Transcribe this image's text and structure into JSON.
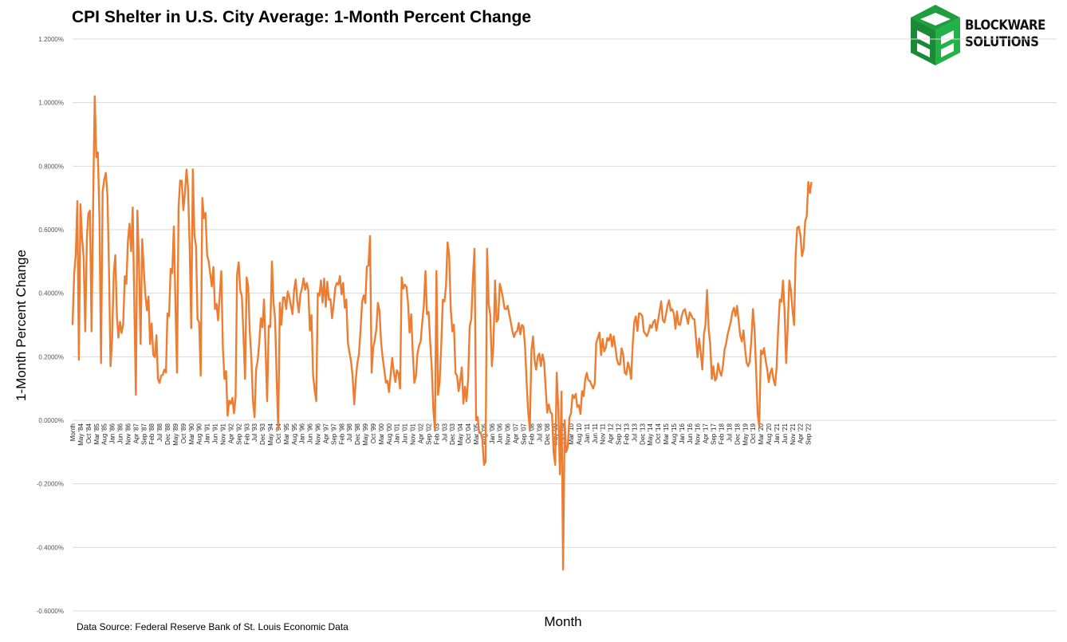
{
  "chart_data": {
    "type": "line",
    "title": "CPI Shelter in U.S. City Average: 1-Month Percent Change",
    "xlabel": "Month",
    "ylabel": "1-Month Percent Change",
    "source": "Data Source: Federal Reserve Bank of St. Louis Economic Data",
    "ylim": [
      -0.6,
      1.2
    ],
    "yticks": [
      "1.2000%",
      "1.0000%",
      "0.8000%",
      "0.6000%",
      "0.4000%",
      "0.2000%",
      "0.0000%",
      "-0.2000%",
      "-0.4000%",
      "-0.6000%"
    ],
    "ytick_values": [
      1.2,
      1.0,
      0.8,
      0.6,
      0.4,
      0.2,
      0.0,
      -0.2,
      -0.4,
      -0.6
    ],
    "grid": true,
    "legend": "none",
    "line_color": "#ED7D31",
    "start": "1984-01",
    "end": "2022-12",
    "x_tick_labels": [
      "Month",
      "May '84",
      "Oct '84",
      "Mar '85",
      "Aug '85",
      "Jan '86",
      "Jun '86",
      "Nov '86",
      "Apr '87",
      "Sep '87",
      "Feb '88",
      "Jul '88",
      "Dec '88",
      "May '89",
      "Oct '89",
      "Mar '90",
      "Aug '90",
      "Jan '91",
      "Jun '91",
      "Nov '91",
      "Apr '92",
      "Sep '92",
      "Feb '93",
      "Jul '93",
      "Dec '93",
      "May '94",
      "Oct '94",
      "Mar '95",
      "Aug '95",
      "Jan '96",
      "Jun '96",
      "Nov '96",
      "Apr '97",
      "Sep '97",
      "Feb '98",
      "Jul '98",
      "Dec '98",
      "May '99",
      "Oct '99",
      "Mar '00",
      "Aug '00",
      "Jan '01",
      "Jun '01",
      "Nov '01",
      "Apr '02",
      "Sep '02",
      "Feb '03",
      "Jul '03",
      "Dec '03",
      "May '04",
      "Oct '04",
      "Mar '05",
      "Aug '05",
      "Jan '06",
      "Jun '06",
      "Nov '06",
      "Apr '07",
      "Sep '07",
      "Feb '08",
      "Jul '08",
      "Dec '08",
      "May '09",
      "Oct '09",
      "Mar '10",
      "Aug '10",
      "Jan '11",
      "Jun '11",
      "Nov '11",
      "Apr '12",
      "Sep '12",
      "Feb '13",
      "Jul '13",
      "Dec '13",
      "May '14",
      "Oct '14",
      "Mar '15",
      "Aug '15",
      "Jan '16",
      "Jun '16",
      "Nov '16",
      "Apr '17",
      "Sep '17",
      "Feb '18",
      "Jul '18",
      "Dec '18",
      "May '19",
      "Oct '19",
      "Mar '20",
      "Aug '20",
      "Jan '21",
      "Jun '21",
      "Nov '21",
      "Apr '22",
      "Sep '22"
    ],
    "anchors": [
      [
        "1984-01",
        0.3
      ],
      [
        "1984-04",
        0.69
      ],
      [
        "1984-05",
        0.19
      ],
      [
        "1984-06",
        0.68
      ],
      [
        "1984-09",
        0.28
      ],
      [
        "1984-10",
        0.57
      ],
      [
        "1984-12",
        0.66
      ],
      [
        "1985-01",
        0.28
      ],
      [
        "1985-03",
        1.02
      ],
      [
        "1985-06",
        0.64
      ],
      [
        "1985-07",
        0.18
      ],
      [
        "1985-08",
        0.72
      ],
      [
        "1985-11",
        0.71
      ],
      [
        "1986-01",
        0.17
      ],
      [
        "1986-04",
        0.52
      ],
      [
        "1986-06",
        0.26
      ],
      [
        "1986-11",
        0.43
      ],
      [
        "1987-03",
        0.67
      ],
      [
        "1987-05",
        0.08
      ],
      [
        "1987-06",
        0.66
      ],
      [
        "1987-08",
        0.24
      ],
      [
        "1987-09",
        0.57
      ],
      [
        "1988-02",
        0.24
      ],
      [
        "1988-12",
        0.15
      ],
      [
        "1989-05",
        0.61
      ],
      [
        "1989-07",
        0.15
      ],
      [
        "1989-08",
        0.67
      ],
      [
        "1990-02",
        0.73
      ],
      [
        "1990-04",
        0.29
      ],
      [
        "1990-05",
        0.79
      ],
      [
        "1990-10",
        0.14
      ],
      [
        "1990-11",
        0.7
      ],
      [
        "1991-07",
        0.35
      ],
      [
        "1991-11",
        0.47
      ],
      [
        "1992-01",
        0.13
      ],
      [
        "1992-08",
        0.07
      ],
      [
        "1992-09",
        0.46
      ],
      [
        "1992-12",
        0.39
      ],
      [
        "1993-02",
        0.13
      ],
      [
        "1993-03",
        0.45
      ],
      [
        "1993-07",
        0.06
      ],
      [
        "1994-02",
        0.38
      ],
      [
        "1994-04",
        0.06
      ],
      [
        "1994-07",
        0.5
      ],
      [
        "1994-11",
        -0.03
      ],
      [
        "1994-12",
        0.37
      ],
      [
        "1995-07",
        0.36
      ],
      [
        "1996-06",
        0.41
      ],
      [
        "1996-11",
        0.06
      ],
      [
        "1996-12",
        0.4
      ],
      [
        "1998-06",
        0.38
      ],
      [
        "1998-11",
        0.05
      ],
      [
        "1999-09",
        0.58
      ],
      [
        "1999-10",
        0.15
      ],
      [
        "2000-02",
        0.37
      ],
      [
        "2000-06",
        0.16
      ],
      [
        "2001-04",
        0.1
      ],
      [
        "2001-05",
        0.45
      ],
      [
        "2001-08",
        0.42
      ],
      [
        "2002-02",
        0.14
      ],
      [
        "2002-08",
        0.47
      ],
      [
        "2003-02",
        -0.03
      ],
      [
        "2003-03",
        0.47
      ],
      [
        "2003-04",
        0.08
      ],
      [
        "2003-10",
        0.56
      ],
      [
        "2004-01",
        0.28
      ],
      [
        "2004-04",
        0.14
      ],
      [
        "2004-10",
        0.06
      ],
      [
        "2005-03",
        0.54
      ],
      [
        "2005-04",
        0.0
      ],
      [
        "2005-10",
        -0.13
      ],
      [
        "2005-11",
        0.54
      ],
      [
        "2006-02",
        0.17
      ],
      [
        "2006-04",
        0.44
      ],
      [
        "2006-05",
        0.31
      ],
      [
        "2006-07",
        0.43
      ],
      [
        "2006-11",
        0.35
      ],
      [
        "2007-03",
        0.28
      ],
      [
        "2007-09",
        0.3
      ],
      [
        "2008-02",
        -0.03
      ],
      [
        "2008-03",
        0.22
      ],
      [
        "2008-08",
        0.21
      ],
      [
        "2008-12",
        0.1
      ],
      [
        "2009-04",
        0.02
      ],
      [
        "2009-06",
        -0.14
      ],
      [
        "2009-07",
        0.15
      ],
      [
        "2009-09",
        -0.17
      ],
      [
        "2009-10",
        0.09
      ],
      [
        "2009-11",
        -0.47
      ],
      [
        "2009-12",
        0.0
      ],
      [
        "2010-01",
        -0.1
      ],
      [
        "2010-06",
        0.07
      ],
      [
        "2010-10",
        0.02
      ],
      [
        "2011-01",
        0.13
      ],
      [
        "2011-06",
        0.1
      ],
      [
        "2011-09",
        0.26
      ],
      [
        "2012-02",
        0.23
      ],
      [
        "2012-08",
        0.23
      ],
      [
        "2013-06",
        0.13
      ],
      [
        "2013-08",
        0.31
      ],
      [
        "2014-06",
        0.3
      ],
      [
        "2015-05",
        0.36
      ],
      [
        "2016-01",
        0.3
      ],
      [
        "2016-04",
        0.35
      ],
      [
        "2016-09",
        0.32
      ],
      [
        "2017-03",
        0.16
      ],
      [
        "2017-06",
        0.41
      ],
      [
        "2017-09",
        0.13
      ],
      [
        "2018-03",
        0.14
      ],
      [
        "2018-07",
        0.27
      ],
      [
        "2018-09",
        0.31
      ],
      [
        "2019-01",
        0.36
      ],
      [
        "2019-08",
        0.17
      ],
      [
        "2019-11",
        0.35
      ],
      [
        "2020-02",
        0.02
      ],
      [
        "2020-03",
        -0.02
      ],
      [
        "2020-04",
        0.22
      ],
      [
        "2020-09",
        0.12
      ],
      [
        "2021-01",
        0.11
      ],
      [
        "2021-02",
        0.17
      ],
      [
        "2021-04",
        0.38
      ],
      [
        "2021-06",
        0.44
      ],
      [
        "2021-08",
        0.18
      ],
      [
        "2021-10",
        0.44
      ],
      [
        "2022-01",
        0.3
      ],
      [
        "2022-02",
        0.52
      ],
      [
        "2022-04",
        0.61
      ],
      [
        "2022-07",
        0.54
      ],
      [
        "2022-10",
        0.75
      ],
      [
        "2022-12",
        0.75
      ]
    ]
  },
  "logo": {
    "line1": "BLOCKWARE",
    "line2": "SOLUTIONS",
    "color": "#1E9E3E"
  }
}
